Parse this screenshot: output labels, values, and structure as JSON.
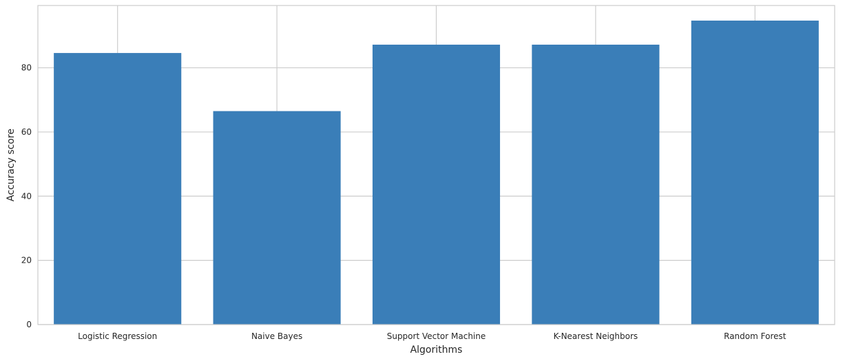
{
  "chart_data": {
    "type": "bar",
    "title": "",
    "xlabel": "Algorithms",
    "ylabel": "Accuracy score",
    "categories": [
      "Logistic Regression",
      "Naive Bayes",
      "Support Vector Machine",
      "K-Nearest Neighbors",
      "Random Forest"
    ],
    "values": [
      84.6,
      66.5,
      87.2,
      87.2,
      94.7
    ],
    "ylim": [
      0,
      99.4
    ],
    "yticks": [
      "0",
      "20",
      "40",
      "60",
      "80"
    ],
    "grid": true,
    "legend": "none",
    "bar_color": "#3a7eb8",
    "grid_color": "#cccccc",
    "axes_edge_color": "#cccccc"
  }
}
